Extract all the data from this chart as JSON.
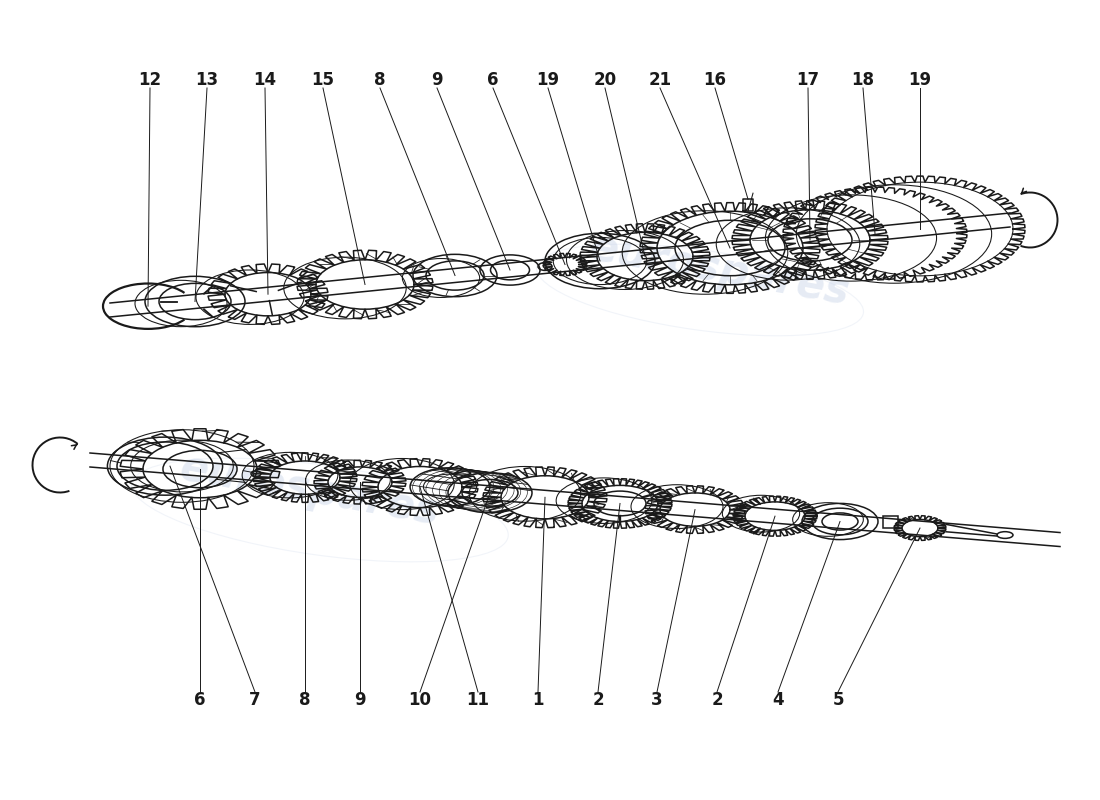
{
  "background_color": "#ffffff",
  "line_color": "#1a1a1a",
  "watermark_text": "eurospares",
  "watermark_color": "#c8d4e8",
  "watermark_alpha": 0.45,
  "font_size": 12,
  "lw": 1.1
}
